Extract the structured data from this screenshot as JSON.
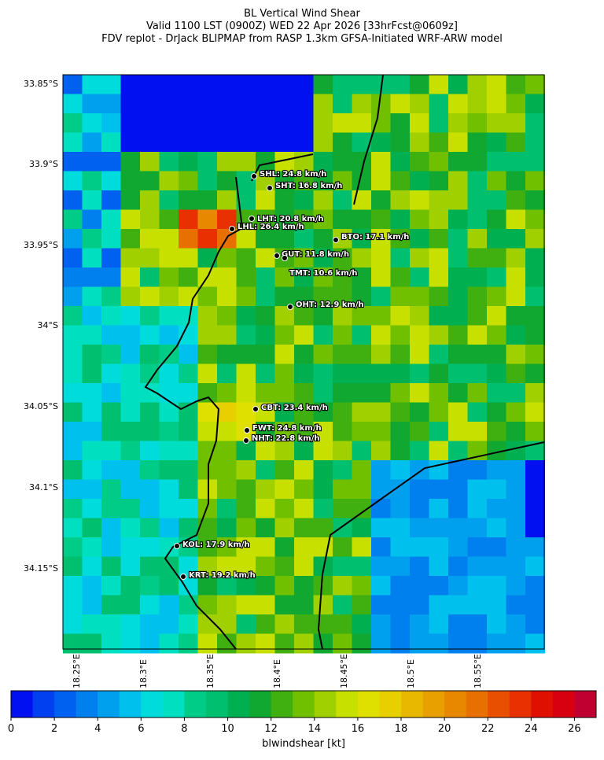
{
  "header": {
    "title_lines": [
      "BL Vertical Wind Shear",
      "Valid 1100 LST (0900Z) WED 22 Apr 2026 [33hrFcst@0609z]",
      "FDV replot - DrJack BLIPMAP from RASP 1.3km GFSA-Initiated WRF-ARW model"
    ]
  },
  "map": {
    "lat_labels": [
      "33.85°S",
      "33.9°S",
      "33.95°S",
      "34°S",
      "34.05°S",
      "34.1°S",
      "34.15°S"
    ],
    "lon_labels": [
      "18.25°E",
      "18.3°E",
      "18.35°E",
      "18.4°E",
      "18.45°E",
      "18.5°E",
      "18.55°E"
    ],
    "stations": [
      {
        "label": "SHL: 24.8 km/h"
      },
      {
        "label": "SHT: 16.8 km/h"
      },
      {
        "label": "LHT: 20.8 km/h"
      },
      {
        "label": "LHL: 26.4 km/h"
      },
      {
        "label": "BTO: 17.1 km/h"
      },
      {
        "label": "GUT: 11.8 km/h"
      },
      {
        "label": "TMT: 10.6 km/h"
      },
      {
        "label": "OHT: 12.9 km/h"
      },
      {
        "label": "CBT: 23.4 km/h"
      },
      {
        "label": "FWT: 24.8 km/h"
      },
      {
        "label": "NHT: 22.8 km/h"
      },
      {
        "label": "KOL: 17.9 km/h"
      },
      {
        "label": "KRT: 19.2 km/h"
      }
    ]
  },
  "colorbar": {
    "lim": [
      0,
      27
    ],
    "ticks": [
      0,
      2,
      4,
      6,
      8,
      10,
      12,
      14,
      16,
      18,
      20,
      22,
      24,
      26
    ],
    "label": "blwindshear [kt]",
    "colors": [
      "#0010f0",
      "#0040f0",
      "#0060ef",
      "#0080ee",
      "#00a0ee",
      "#00c0ee",
      "#00dcdc",
      "#00e0c0",
      "#00cc88",
      "#00c070",
      "#00b050",
      "#10a830",
      "#40b010",
      "#70c000",
      "#a0d000",
      "#c8e000",
      "#e0e000",
      "#e8d000",
      "#e8b800",
      "#e8a000",
      "#e88800",
      "#e87000",
      "#e85000",
      "#e83000",
      "#e01000",
      "#d80010",
      "#c00030"
    ]
  }
}
